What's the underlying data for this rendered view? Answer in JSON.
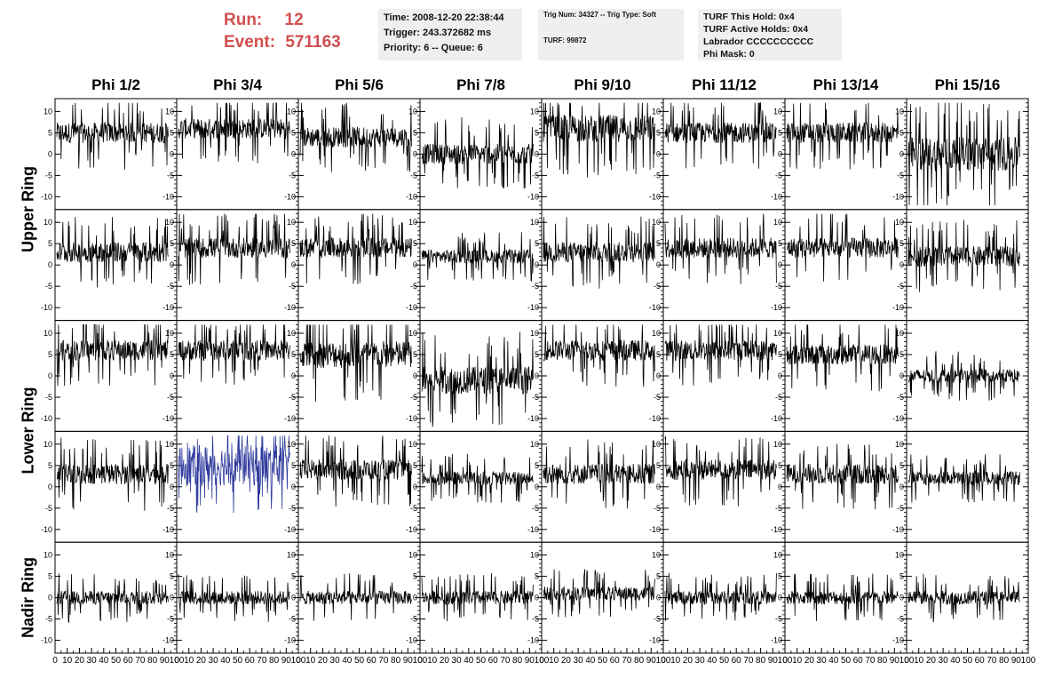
{
  "header": {
    "run_label": "Run:",
    "run_value": "12",
    "event_label": "Event:",
    "event_value": "571163"
  },
  "info_time": {
    "time": "Time: 2008-12-20 22:38:44",
    "trigger": "Trigger: 243.372682 ms",
    "priority": "Priority: 6 -- Queue: 6"
  },
  "info_trig": {
    "trig": "Trig Num: 34327 -- Trig Type: Soft",
    "turf": "TURF: 99872"
  },
  "info_turf": {
    "hold": "TURF This Hold: 0x4",
    "active": "TURF Active Holds: 0x4",
    "labrador": "Labrador CCCCCCCCCC",
    "mask": "Phi Mask: 0"
  },
  "chart_data": {
    "type": "line",
    "columns": [
      "Phi 1/2",
      "Phi 3/4",
      "Phi 5/6",
      "Phi 7/8",
      "Phi 9/10",
      "Phi 11/12",
      "Phi 13/14",
      "Phi 15/16"
    ],
    "rows": [
      "Upper Ring",
      "Upper Ring",
      "Lower Ring",
      "Lower Ring",
      "Nadir Ring"
    ],
    "ring_labels": [
      {
        "text": "Upper Ring",
        "rows": [
          0,
          1
        ]
      },
      {
        "text": "Lower Ring",
        "rows": [
          2,
          3
        ]
      },
      {
        "text": "Nadir Ring",
        "rows": [
          4,
          4
        ]
      }
    ],
    "xlim": [
      0,
      100
    ],
    "ylim": [
      -13,
      13
    ],
    "x_ticks": [
      0,
      10,
      20,
      30,
      40,
      50,
      60,
      70,
      80,
      90,
      100
    ],
    "y_ticks": [
      -10,
      -5,
      0,
      5,
      10
    ],
    "trace_color": "#000000",
    "highlight_color": "#2f3b9c",
    "highlight": {
      "row": 3,
      "col": 1
    },
    "waveform_mean": [
      [
        5,
        6,
        4,
        0,
        6,
        5,
        5,
        0
      ],
      [
        3,
        4,
        4,
        2,
        3,
        4,
        4,
        2
      ],
      [
        6,
        6,
        5,
        -1,
        6,
        6,
        5,
        0
      ],
      [
        3,
        5,
        4,
        2,
        3,
        4,
        3,
        2
      ],
      [
        0,
        0,
        0,
        0,
        1,
        0,
        0,
        0
      ]
    ],
    "waveform_spread": [
      [
        3,
        3,
        3,
        3,
        4,
        3,
        3,
        5
      ],
      [
        3,
        3,
        3,
        2,
        3,
        3,
        3,
        3
      ],
      [
        3,
        3,
        4,
        4,
        3,
        3,
        3,
        2
      ],
      [
        3,
        4,
        3,
        2,
        3,
        3,
        3,
        2
      ],
      [
        2,
        2,
        2,
        2,
        2,
        2,
        2,
        2
      ]
    ]
  }
}
